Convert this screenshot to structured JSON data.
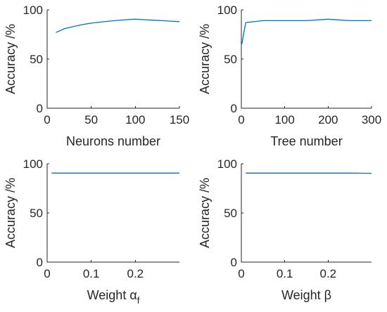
{
  "colors": {
    "series": "#0072BD",
    "axis": "#262626",
    "background": "#ffffff"
  },
  "chart_data": [
    {
      "type": "line",
      "title": "",
      "xlabel": "Neurons number",
      "xlabel_sub": "",
      "ylabel": "Accuracy /%",
      "xlim": [
        0,
        150
      ],
      "ylim": [
        0,
        100
      ],
      "xticks": [
        0,
        50,
        100,
        150
      ],
      "xtick_labels": [
        "0",
        "50",
        "100",
        "150"
      ],
      "yticks": [
        0,
        50,
        100
      ],
      "ytick_labels": [
        "0",
        "50",
        "100"
      ],
      "grid": false,
      "series": [
        {
          "x": [
            10,
            20,
            30,
            40,
            50,
            60,
            70,
            80,
            90,
            100,
            110,
            120,
            130,
            140,
            150
          ],
          "y": [
            77,
            81,
            83,
            85,
            86.5,
            87.5,
            88.5,
            89.3,
            90,
            90.5,
            90,
            89.5,
            89,
            88.5,
            88
          ]
        }
      ]
    },
    {
      "type": "line",
      "title": "",
      "xlabel": "Tree number",
      "xlabel_sub": "",
      "ylabel": "Accuracy /%",
      "xlim": [
        0,
        300
      ],
      "ylim": [
        0,
        100
      ],
      "xticks": [
        0,
        100,
        200,
        300
      ],
      "xtick_labels": [
        "0",
        "100",
        "200",
        "300"
      ],
      "yticks": [
        0,
        50,
        100
      ],
      "ytick_labels": [
        "0",
        "50",
        "100"
      ],
      "grid": false,
      "series": [
        {
          "x": [
            1,
            10,
            50,
            100,
            150,
            200,
            250,
            300
          ],
          "y": [
            65,
            87,
            89,
            89,
            89,
            90.5,
            89,
            89
          ]
        }
      ]
    },
    {
      "type": "line",
      "title": "",
      "xlabel": "Weight α",
      "xlabel_sub": "f",
      "ylabel": "Accuracy /%",
      "xlim": [
        0,
        0.3
      ],
      "ylim": [
        0,
        100
      ],
      "xticks": [
        0,
        0.1,
        0.2
      ],
      "xtick_labels": [
        "0",
        "0.1",
        "0.2"
      ],
      "yticks": [
        0,
        50,
        100
      ],
      "ytick_labels": [
        "0",
        "50",
        "100"
      ],
      "grid": false,
      "series": [
        {
          "x": [
            0.01,
            0.05,
            0.1,
            0.15,
            0.2,
            0.25,
            0.3
          ],
          "y": [
            90.5,
            90.5,
            90.5,
            90.5,
            90.5,
            90.5,
            90.5
          ]
        }
      ]
    },
    {
      "type": "line",
      "title": "",
      "xlabel": "Weight β",
      "xlabel_sub": "",
      "ylabel": "Accuracy /%",
      "xlim": [
        0,
        0.3
      ],
      "ylim": [
        0,
        100
      ],
      "xticks": [
        0,
        0.1,
        0.2
      ],
      "xtick_labels": [
        "0",
        "0.1",
        "0.2"
      ],
      "yticks": [
        0,
        50,
        100
      ],
      "ytick_labels": [
        "0",
        "50",
        "100"
      ],
      "grid": false,
      "series": [
        {
          "x": [
            0.01,
            0.05,
            0.1,
            0.15,
            0.2,
            0.25,
            0.3
          ],
          "y": [
            90.5,
            90.5,
            90.5,
            90.5,
            90.5,
            90.5,
            90.3
          ]
        }
      ]
    }
  ]
}
